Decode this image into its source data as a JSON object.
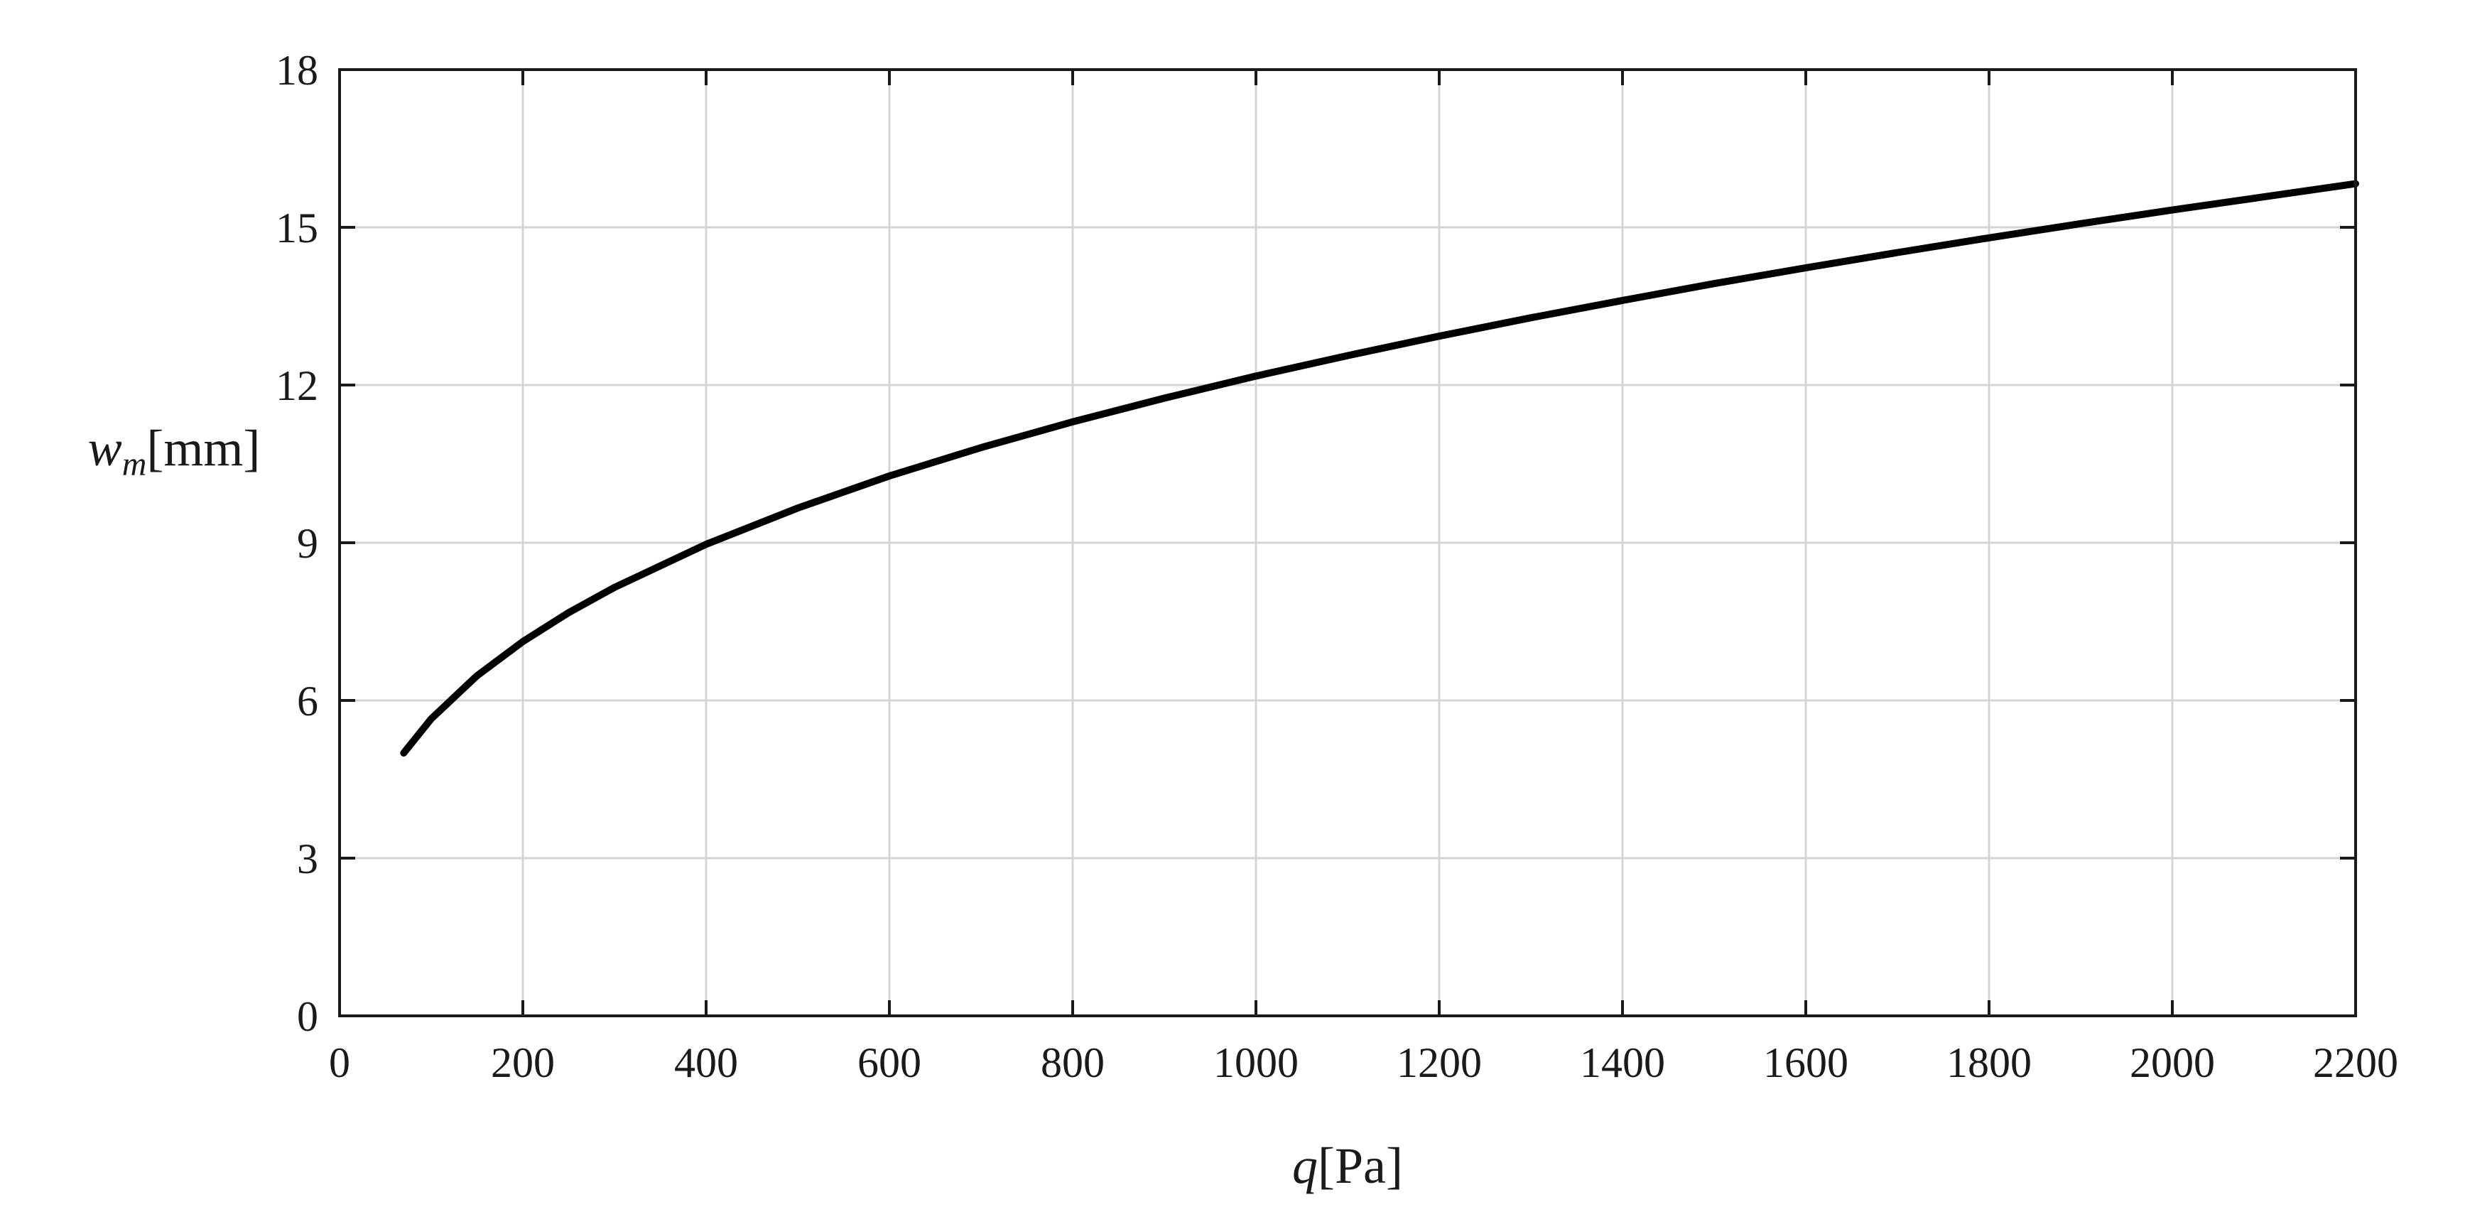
{
  "chart_data": {
    "type": "line",
    "title": "",
    "xlabel": {
      "symbol": "q",
      "unit": "[Pa]"
    },
    "ylabel": {
      "symbol": "w",
      "subscript": "m",
      "unit": "[mm]"
    },
    "xlim": [
      0,
      2200
    ],
    "ylim": [
      0,
      18
    ],
    "xticks": [
      0,
      200,
      400,
      600,
      800,
      1000,
      1200,
      1400,
      1600,
      1800,
      2000,
      2200
    ],
    "yticks": [
      0,
      3,
      6,
      9,
      12,
      15,
      18
    ],
    "grid": true,
    "legend": "none",
    "colors": {
      "line": "#000000",
      "grid": "#d4d4d4",
      "axis": "#1a1a1a"
    },
    "series": [
      {
        "x": [
          70,
          100,
          150,
          200,
          250,
          300,
          400,
          500,
          600,
          700,
          800,
          900,
          1000,
          1100,
          1200,
          1300,
          1400,
          1500,
          1600,
          1700,
          1800,
          1900,
          2000,
          2100,
          2200
        ],
        "y": [
          5.0,
          5.65,
          6.47,
          7.12,
          7.67,
          8.15,
          8.97,
          9.66,
          10.27,
          10.81,
          11.3,
          11.75,
          12.17,
          12.56,
          12.93,
          13.28,
          13.61,
          13.93,
          14.23,
          14.52,
          14.8,
          15.07,
          15.33,
          15.58,
          15.83
        ]
      }
    ]
  }
}
